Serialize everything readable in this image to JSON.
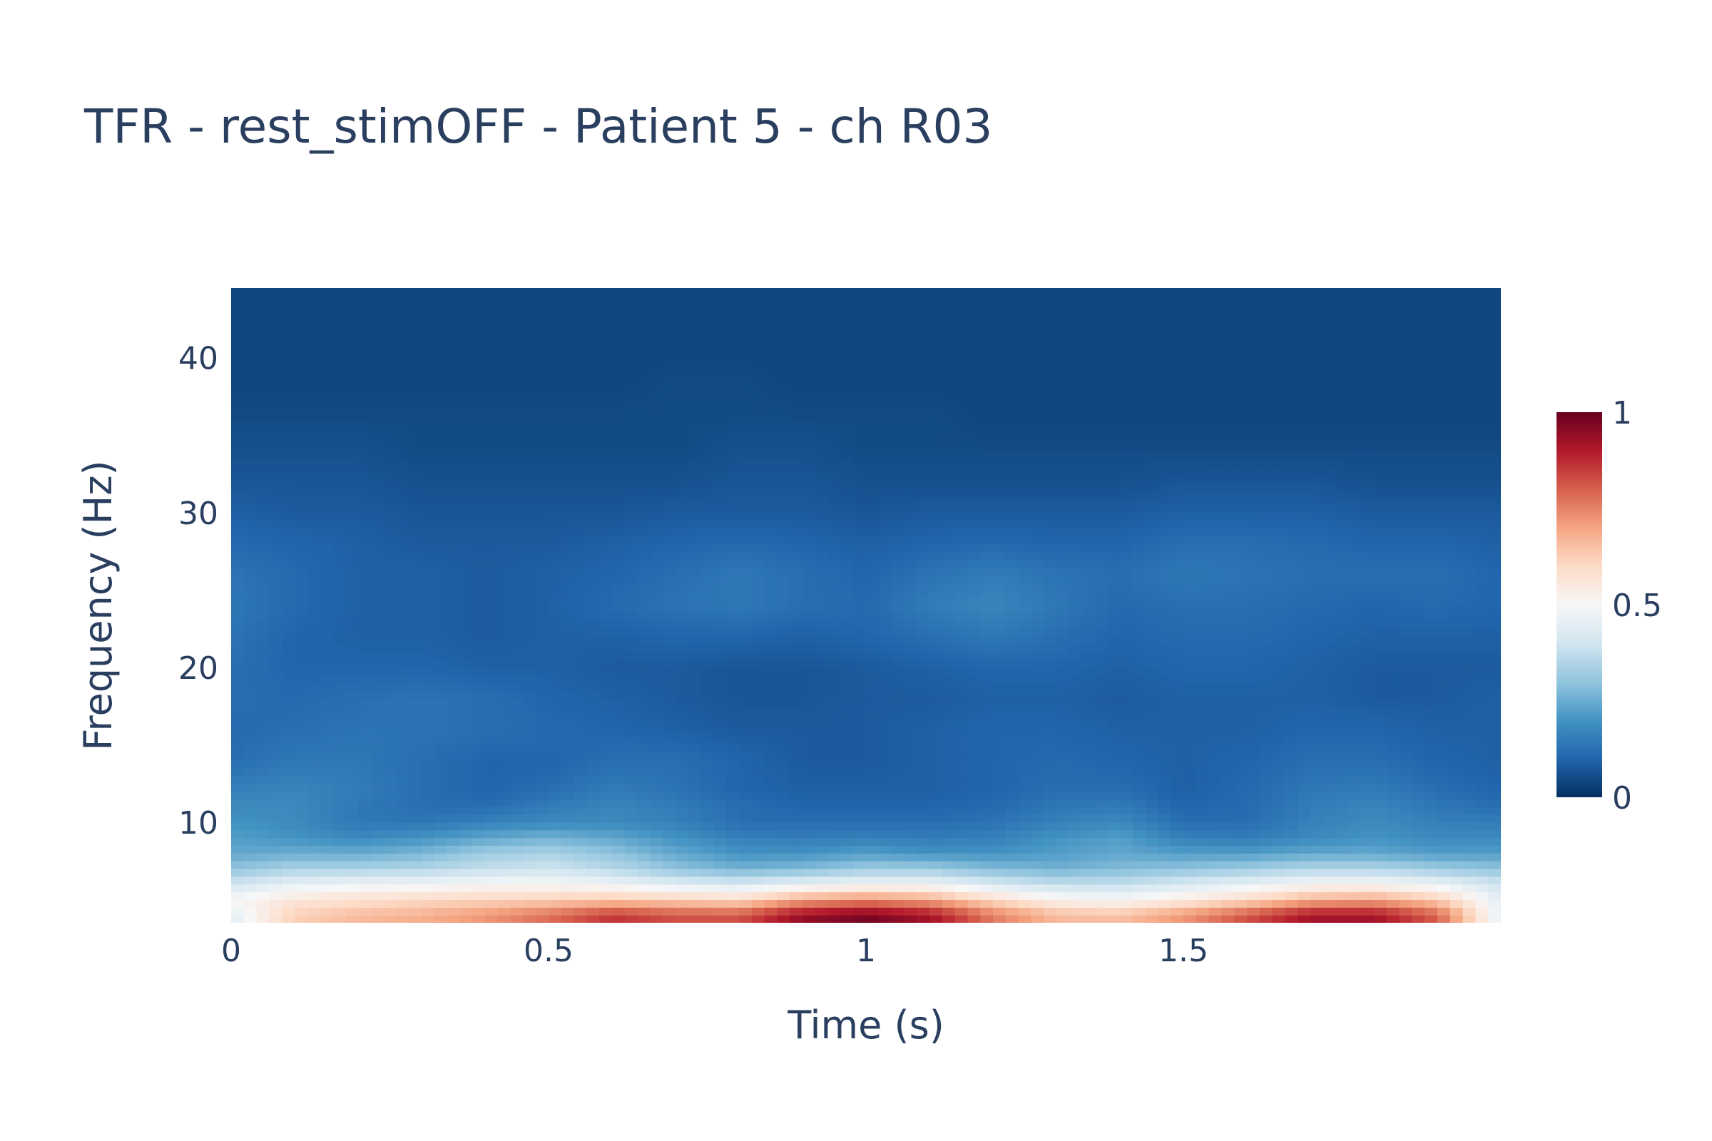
{
  "chart_data": {
    "type": "heatmap",
    "title": "TFR - rest_stimOFF - Patient 5 - ch R03",
    "xlabel": "Time (s)",
    "ylabel": "Frequency (Hz)",
    "xlim": [
      0,
      2.0
    ],
    "ylim": [
      3.5,
      44.5
    ],
    "x_ticks": [
      0,
      0.5,
      1,
      1.5
    ],
    "x_tick_labels": [
      "0",
      "0.5",
      "1",
      "1.5"
    ],
    "y_ticks": [
      10,
      20,
      30,
      40
    ],
    "y_tick_labels": [
      "10",
      "20",
      "30",
      "40"
    ],
    "colorscale": "RdBu_r",
    "colorscale_stops": [
      "#053061",
      "#2166ac",
      "#4393c3",
      "#92c5de",
      "#d1e5f0",
      "#f7f7f7",
      "#fddbc7",
      "#f4a582",
      "#d6604d",
      "#b2182b",
      "#67001f"
    ],
    "colorbar": {
      "min": 0,
      "max": 1,
      "tick_values": [
        0,
        0.5,
        1
      ],
      "tick_labels": [
        "0",
        "0.5",
        "1"
      ]
    },
    "grid": false,
    "time": [
      0,
      0.1,
      0.2,
      0.3,
      0.4,
      0.5,
      0.6,
      0.7,
      0.8,
      0.9,
      1.0,
      1.1,
      1.2,
      1.3,
      1.4,
      1.5,
      1.6,
      1.7,
      1.8,
      1.9,
      2.0
    ],
    "frequency": [
      4,
      5,
      6,
      7,
      8,
      9,
      10,
      11,
      12,
      14,
      16,
      18,
      20,
      22,
      24,
      26,
      28,
      30,
      32,
      34,
      36,
      38,
      40,
      42,
      44
    ],
    "power_rows_by_frequency": [
      [
        0.45,
        0.62,
        0.66,
        0.68,
        0.72,
        0.78,
        0.86,
        0.82,
        0.82,
        0.94,
        0.98,
        0.92,
        0.76,
        0.66,
        0.65,
        0.72,
        0.82,
        0.92,
        0.92,
        0.8,
        0.45
      ],
      [
        0.5,
        0.56,
        0.58,
        0.6,
        0.61,
        0.62,
        0.64,
        0.62,
        0.6,
        0.7,
        0.74,
        0.7,
        0.6,
        0.52,
        0.5,
        0.55,
        0.6,
        0.68,
        0.7,
        0.63,
        0.45
      ],
      [
        0.4,
        0.46,
        0.48,
        0.48,
        0.5,
        0.5,
        0.48,
        0.44,
        0.42,
        0.46,
        0.48,
        0.48,
        0.42,
        0.38,
        0.38,
        0.42,
        0.46,
        0.5,
        0.5,
        0.47,
        0.4
      ],
      [
        0.3,
        0.34,
        0.34,
        0.35,
        0.38,
        0.4,
        0.36,
        0.3,
        0.26,
        0.28,
        0.32,
        0.32,
        0.28,
        0.26,
        0.28,
        0.3,
        0.32,
        0.35,
        0.35,
        0.32,
        0.3
      ],
      [
        0.24,
        0.25,
        0.25,
        0.27,
        0.32,
        0.34,
        0.3,
        0.24,
        0.2,
        0.2,
        0.22,
        0.2,
        0.2,
        0.22,
        0.24,
        0.22,
        0.22,
        0.24,
        0.24,
        0.22,
        0.22
      ],
      [
        0.22,
        0.2,
        0.18,
        0.2,
        0.24,
        0.26,
        0.24,
        0.2,
        0.16,
        0.15,
        0.16,
        0.15,
        0.16,
        0.2,
        0.22,
        0.16,
        0.15,
        0.18,
        0.2,
        0.18,
        0.18
      ],
      [
        0.2,
        0.18,
        0.14,
        0.14,
        0.16,
        0.18,
        0.18,
        0.16,
        0.12,
        0.12,
        0.12,
        0.12,
        0.13,
        0.16,
        0.18,
        0.12,
        0.12,
        0.16,
        0.18,
        0.16,
        0.15
      ],
      [
        0.18,
        0.18,
        0.14,
        0.12,
        0.12,
        0.15,
        0.17,
        0.15,
        0.12,
        0.1,
        0.1,
        0.1,
        0.11,
        0.14,
        0.15,
        0.1,
        0.11,
        0.15,
        0.17,
        0.14,
        0.12
      ],
      [
        0.16,
        0.17,
        0.15,
        0.12,
        0.1,
        0.12,
        0.15,
        0.13,
        0.1,
        0.09,
        0.09,
        0.09,
        0.1,
        0.12,
        0.12,
        0.09,
        0.11,
        0.14,
        0.15,
        0.12,
        0.1
      ],
      [
        0.12,
        0.14,
        0.14,
        0.12,
        0.1,
        0.1,
        0.12,
        0.12,
        0.1,
        0.08,
        0.08,
        0.09,
        0.1,
        0.11,
        0.1,
        0.09,
        0.1,
        0.12,
        0.12,
        0.1,
        0.09
      ],
      [
        0.11,
        0.12,
        0.13,
        0.13,
        0.12,
        0.11,
        0.1,
        0.09,
        0.08,
        0.08,
        0.08,
        0.09,
        0.1,
        0.1,
        0.09,
        0.09,
        0.09,
        0.1,
        0.1,
        0.09,
        0.09
      ],
      [
        0.12,
        0.11,
        0.12,
        0.13,
        0.12,
        0.1,
        0.09,
        0.08,
        0.07,
        0.07,
        0.08,
        0.08,
        0.09,
        0.09,
        0.08,
        0.09,
        0.09,
        0.09,
        0.08,
        0.08,
        0.09
      ],
      [
        0.12,
        0.1,
        0.1,
        0.1,
        0.09,
        0.09,
        0.08,
        0.08,
        0.07,
        0.07,
        0.08,
        0.09,
        0.1,
        0.1,
        0.09,
        0.1,
        0.1,
        0.09,
        0.08,
        0.08,
        0.08
      ],
      [
        0.13,
        0.1,
        0.09,
        0.09,
        0.08,
        0.09,
        0.09,
        0.1,
        0.1,
        0.09,
        0.1,
        0.12,
        0.14,
        0.12,
        0.1,
        0.11,
        0.11,
        0.1,
        0.09,
        0.09,
        0.09
      ],
      [
        0.14,
        0.11,
        0.09,
        0.09,
        0.08,
        0.09,
        0.11,
        0.13,
        0.14,
        0.12,
        0.11,
        0.15,
        0.17,
        0.14,
        0.11,
        0.12,
        0.12,
        0.11,
        0.1,
        0.11,
        0.1
      ],
      [
        0.13,
        0.11,
        0.09,
        0.09,
        0.08,
        0.09,
        0.1,
        0.12,
        0.14,
        0.12,
        0.1,
        0.13,
        0.15,
        0.13,
        0.12,
        0.14,
        0.13,
        0.12,
        0.12,
        0.12,
        0.1
      ],
      [
        0.11,
        0.1,
        0.09,
        0.08,
        0.08,
        0.08,
        0.09,
        0.1,
        0.11,
        0.1,
        0.09,
        0.1,
        0.11,
        0.1,
        0.1,
        0.12,
        0.12,
        0.11,
        0.1,
        0.1,
        0.09
      ],
      [
        0.09,
        0.08,
        0.08,
        0.07,
        0.07,
        0.07,
        0.07,
        0.08,
        0.08,
        0.08,
        0.07,
        0.08,
        0.08,
        0.08,
        0.08,
        0.09,
        0.09,
        0.09,
        0.08,
        0.08,
        0.08
      ],
      [
        0.07,
        0.07,
        0.07,
        0.06,
        0.06,
        0.06,
        0.06,
        0.06,
        0.07,
        0.07,
        0.06,
        0.06,
        0.06,
        0.06,
        0.06,
        0.07,
        0.07,
        0.07,
        0.06,
        0.06,
        0.06
      ],
      [
        0.06,
        0.06,
        0.06,
        0.05,
        0.05,
        0.05,
        0.05,
        0.05,
        0.06,
        0.06,
        0.05,
        0.05,
        0.05,
        0.05,
        0.05,
        0.05,
        0.05,
        0.05,
        0.05,
        0.05,
        0.05
      ],
      [
        0.05,
        0.05,
        0.05,
        0.05,
        0.05,
        0.05,
        0.05,
        0.05,
        0.05,
        0.05,
        0.05,
        0.05,
        0.04,
        0.04,
        0.04,
        0.04,
        0.04,
        0.04,
        0.04,
        0.04,
        0.04
      ],
      [
        0.04,
        0.04,
        0.04,
        0.04,
        0.04,
        0.04,
        0.04,
        0.05,
        0.05,
        0.04,
        0.04,
        0.04,
        0.04,
        0.04,
        0.04,
        0.04,
        0.04,
        0.04,
        0.04,
        0.04,
        0.04
      ],
      [
        0.04,
        0.04,
        0.04,
        0.04,
        0.04,
        0.04,
        0.04,
        0.04,
        0.04,
        0.04,
        0.04,
        0.04,
        0.04,
        0.04,
        0.04,
        0.04,
        0.04,
        0.04,
        0.04,
        0.04,
        0.04
      ],
      [
        0.04,
        0.04,
        0.04,
        0.04,
        0.04,
        0.04,
        0.04,
        0.04,
        0.04,
        0.04,
        0.04,
        0.04,
        0.04,
        0.04,
        0.04,
        0.04,
        0.04,
        0.04,
        0.04,
        0.04,
        0.04
      ],
      [
        0.04,
        0.04,
        0.04,
        0.04,
        0.04,
        0.04,
        0.04,
        0.04,
        0.04,
        0.04,
        0.04,
        0.04,
        0.04,
        0.04,
        0.04,
        0.04,
        0.04,
        0.04,
        0.04,
        0.04,
        0.04
      ]
    ]
  }
}
